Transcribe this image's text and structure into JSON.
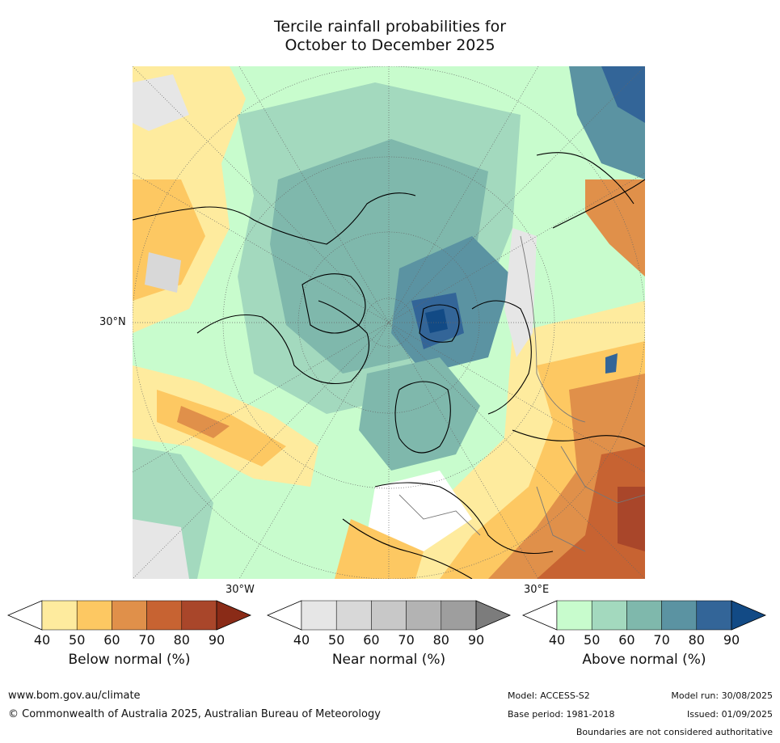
{
  "title": {
    "line1": "Tercile rainfall probabilities for",
    "line2": "October to December 2025"
  },
  "map": {
    "projection": "north-polar-stereographic",
    "labels": {
      "lat_30n": "30°N",
      "lon_30w": "30°W",
      "lon_30e": "30°E"
    }
  },
  "legends": [
    {
      "id": "below",
      "title": "Below normal (%)",
      "ticks": [
        "40",
        "50",
        "60",
        "70",
        "80",
        "90"
      ],
      "colors": [
        "#ffffff",
        "#feeb9e",
        "#fdc862",
        "#e0904a",
        "#c76332",
        "#a9462a",
        "#8a2b17"
      ]
    },
    {
      "id": "near",
      "title": "Near normal (%)",
      "ticks": [
        "40",
        "50",
        "60",
        "70",
        "80",
        "90"
      ],
      "colors": [
        "#ffffff",
        "#e6e6e6",
        "#d8d8d8",
        "#c8c8c8",
        "#b3b3b3",
        "#9e9e9e",
        "#7c7c7c"
      ]
    },
    {
      "id": "above",
      "title": "Above normal (%)",
      "ticks": [
        "40",
        "50",
        "60",
        "70",
        "80",
        "90"
      ],
      "colors": [
        "#ffffff",
        "#c8fccd",
        "#a3d9be",
        "#7fb8ac",
        "#5b93a2",
        "#336598",
        "#124a85"
      ]
    }
  ],
  "footer": {
    "url": "www.bom.gov.au/climate",
    "copyright": "© Commonwealth of Australia 2025, Australian Bureau of Meteorology",
    "model": "Model: ACCESS-S2",
    "base_period": "Base period: 1981-2018",
    "model_run": "Model run: 30/08/2025",
    "issued": "Issued: 01/09/2025",
    "disclaimer": "Boundaries are not considered authoritative"
  }
}
